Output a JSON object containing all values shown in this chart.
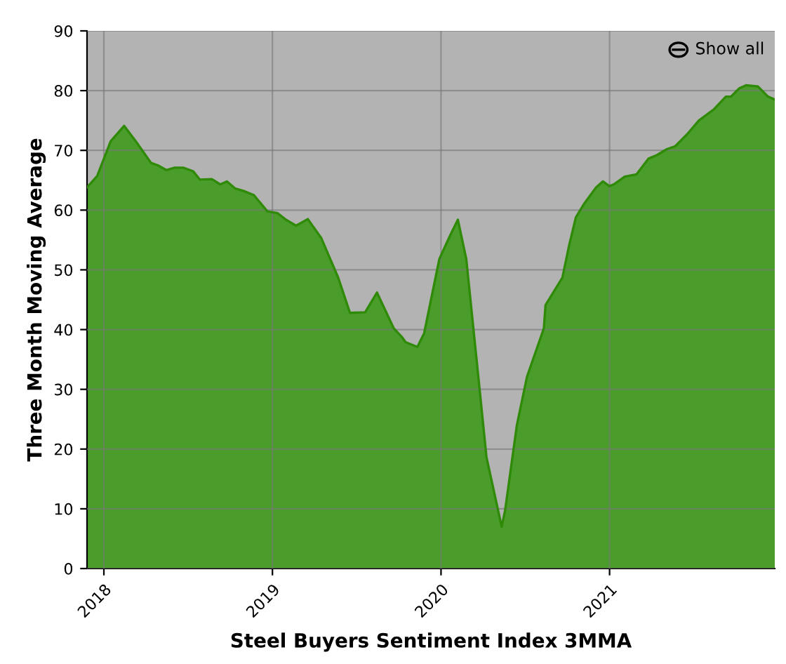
{
  "chart_data": {
    "type": "area",
    "xlabel": "Steel Buyers Sentiment Index 3MMA",
    "ylabel": "Three Month Moving Average",
    "x": [
      2017.9,
      2017.96,
      2018.04,
      2018.12,
      2018.19,
      2018.28,
      2018.32,
      2018.37,
      2018.42,
      2018.47,
      2018.53,
      2018.57,
      2018.64,
      2018.69,
      2018.73,
      2018.78,
      2018.83,
      2018.89,
      2018.97,
      2019.03,
      2019.08,
      2019.14,
      2019.21,
      2019.29,
      2019.39,
      2019.46,
      2019.55,
      2019.62,
      2019.72,
      2019.77,
      2019.79,
      2019.86,
      2019.9,
      2019.99,
      2020.04,
      2020.06,
      2020.1,
      2020.15,
      2020.22,
      2020.27,
      2020.36,
      2020.38,
      2020.45,
      2020.51,
      2020.61,
      2020.62,
      2020.72,
      2020.76,
      2020.8,
      2020.85,
      2020.92,
      2020.96,
      2021.0,
      2021.03,
      2021.09,
      2021.16,
      2021.23,
      2021.28,
      2021.34,
      2021.39,
      2021.46,
      2021.53,
      2021.62,
      2021.69,
      2021.72,
      2021.77,
      2021.81,
      2021.88,
      2021.94,
      2021.98
    ],
    "series": [
      {
        "color": "#3f9a1c",
        "values": [
          63.8,
          65.7,
          71.5,
          74.1,
          71.5,
          67.9,
          67.5,
          66.7,
          67.1,
          67.1,
          66.5,
          65.1,
          65.2,
          64.3,
          64.8,
          63.6,
          63.2,
          62.5,
          59.8,
          59.5,
          58.4,
          57.4,
          58.5,
          55.3,
          48.7,
          42.8,
          42.9,
          46.2,
          40.2,
          38.7,
          37.9,
          37.1,
          39.4,
          51.8,
          54.9,
          56.1,
          58.4,
          51.8,
          32.5,
          18.6,
          7.0,
          9.7,
          24.0,
          32.1,
          40.2,
          44.1,
          48.7,
          54.1,
          58.8,
          61.1,
          63.8,
          64.8,
          64.0,
          64.4,
          65.6,
          66.0,
          68.6,
          69.2,
          70.2,
          70.7,
          72.7,
          75.0,
          76.9,
          79.0,
          79.0,
          80.4,
          80.9,
          80.7,
          79.0,
          78.5
        ]
      }
    ],
    "xlim": [
      2017.9,
      2021.98
    ],
    "xticks": [
      2018,
      2019,
      2020,
      2021
    ],
    "ylim": [
      0,
      90
    ],
    "yticks": [
      0,
      10,
      20,
      30,
      40,
      50,
      60,
      70,
      80,
      90
    ],
    "grid": true,
    "annotations": [
      "Show all"
    ]
  }
}
